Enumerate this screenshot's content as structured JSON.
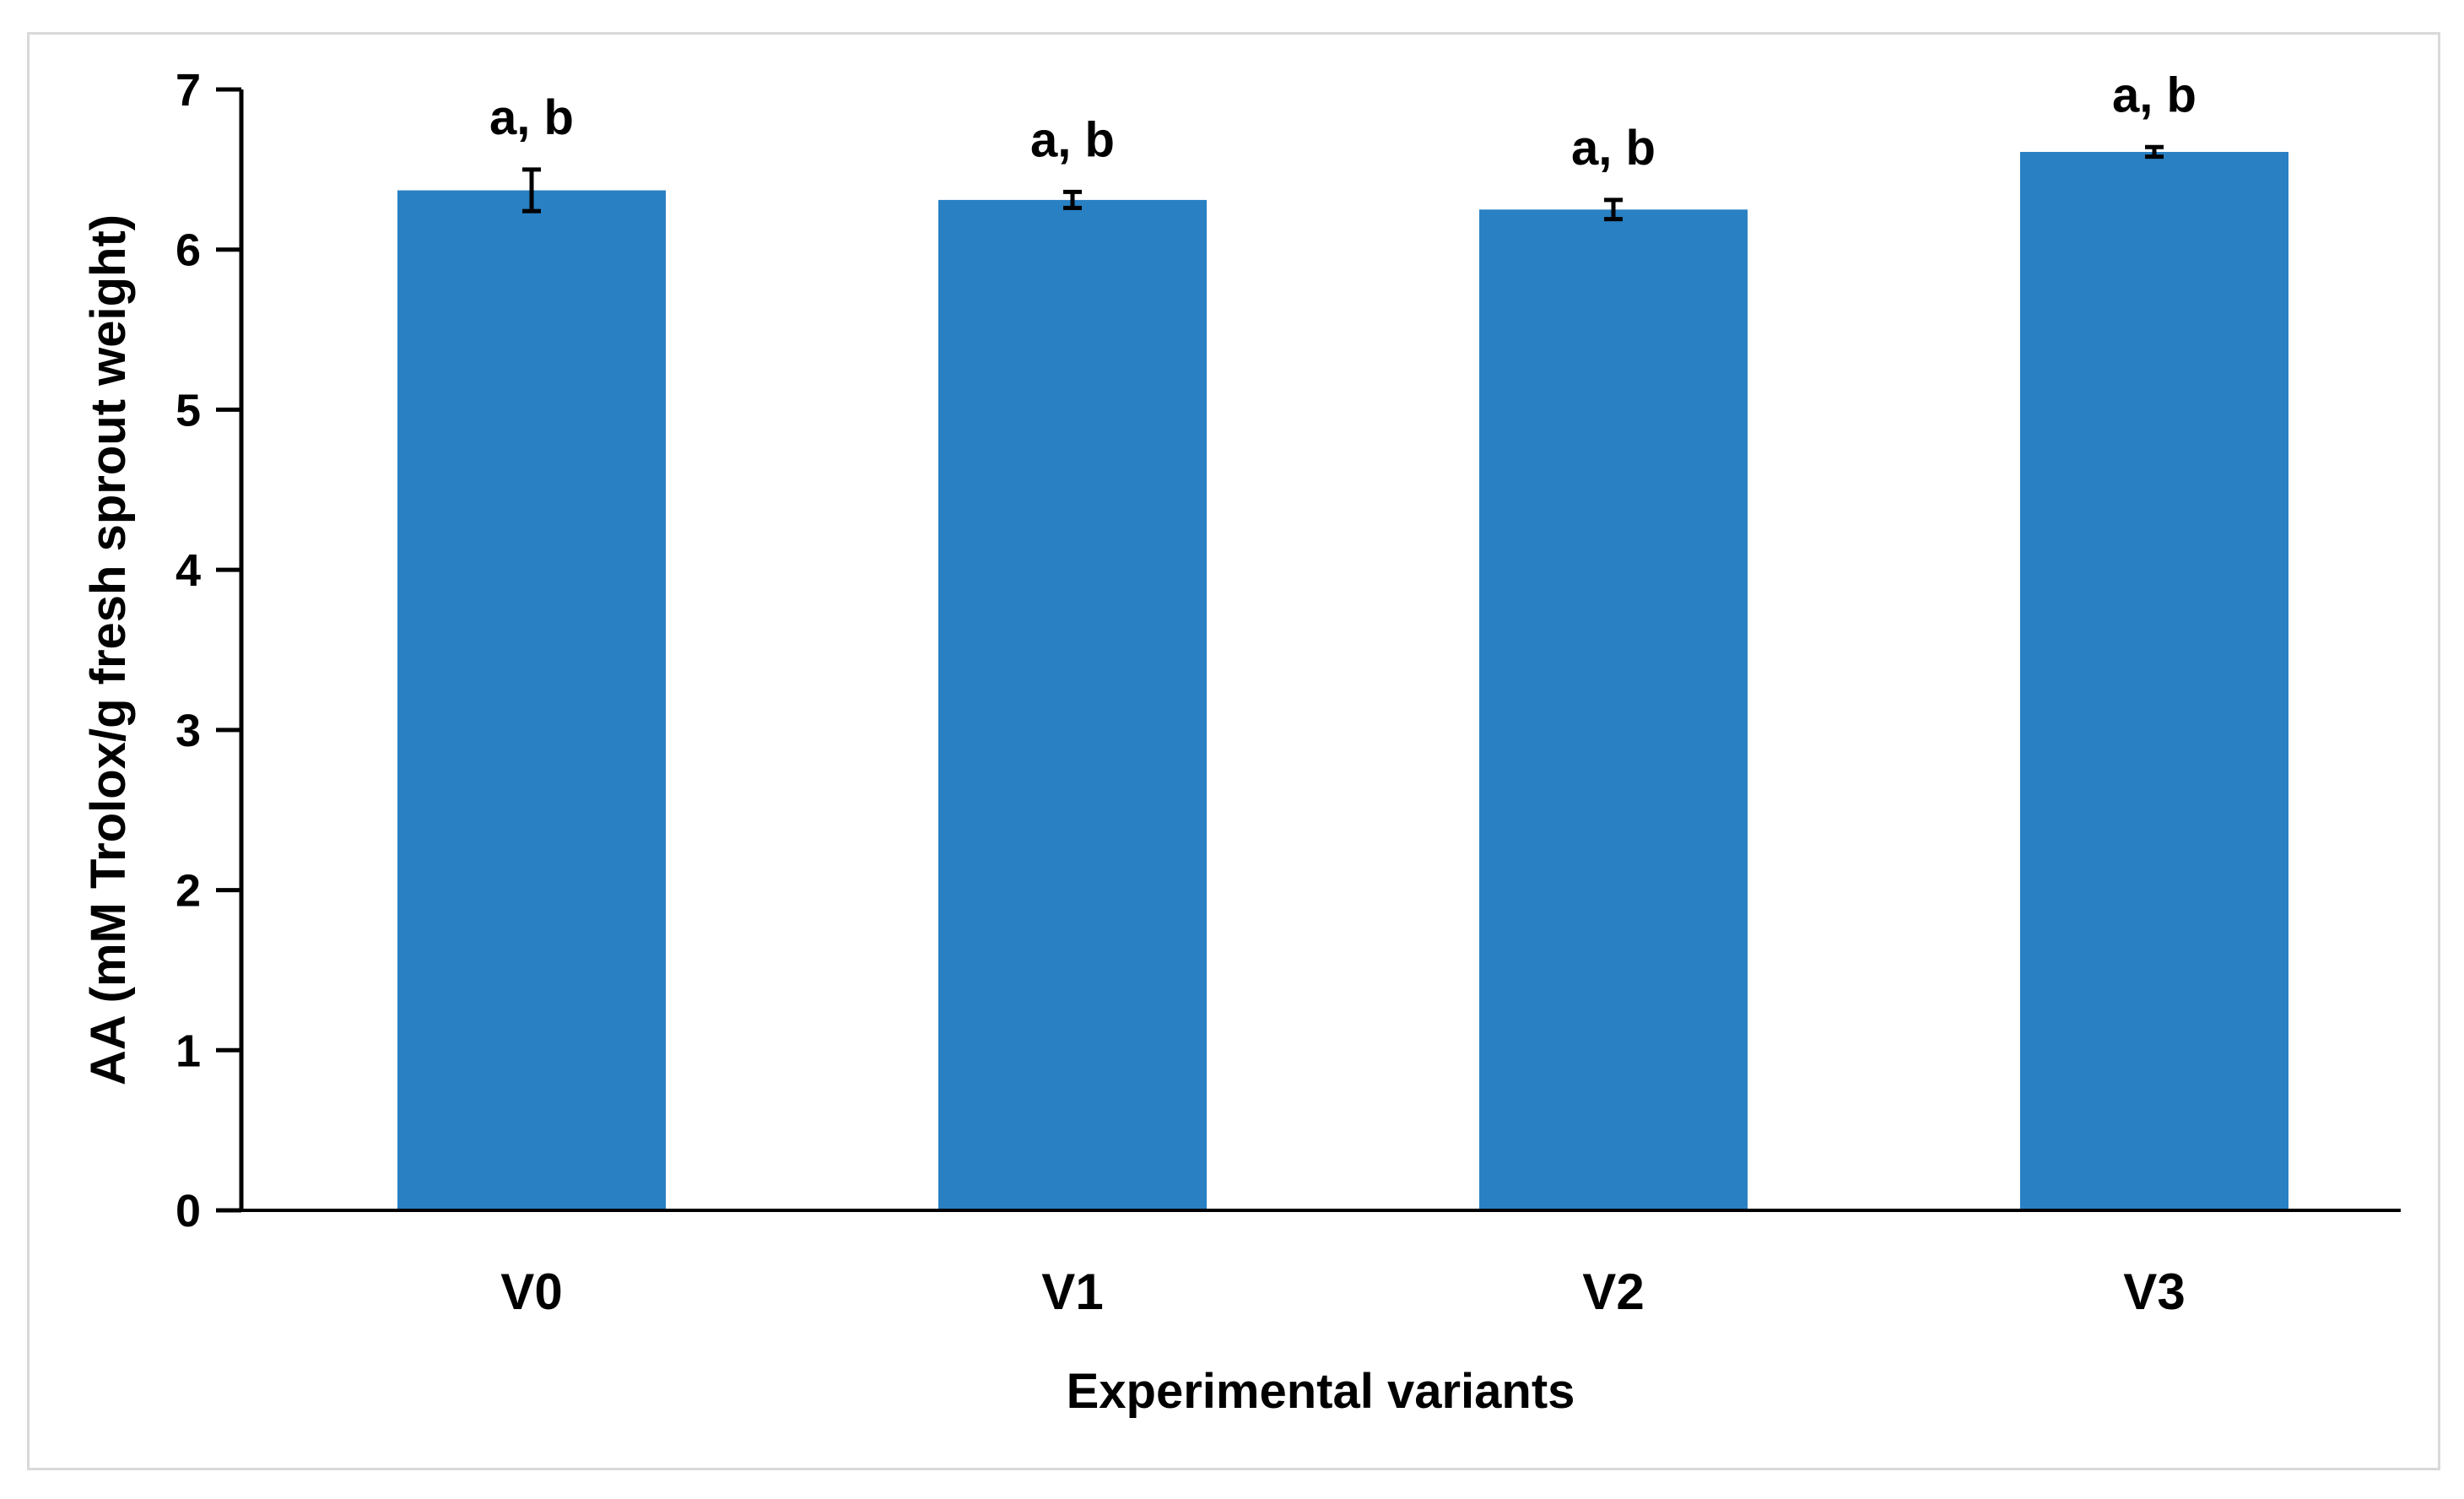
{
  "chart_data": {
    "type": "bar",
    "title": "",
    "xlabel": "Experimental variants",
    "ylabel": "AA (mM Trolox/g fresh sprout weight)",
    "categories": [
      "V0",
      "V1",
      "V2",
      "V3"
    ],
    "values": [
      6.37,
      6.31,
      6.25,
      6.61
    ],
    "errors": [
      0.13,
      0.05,
      0.06,
      0.03
    ],
    "data_labels": [
      "a, b",
      "a, b",
      "a, b",
      "a, b"
    ],
    "ylim": [
      0,
      7
    ],
    "yticks": [
      0,
      1,
      2,
      3,
      4,
      5,
      6,
      7
    ],
    "grid": false,
    "legend": "none",
    "bar_color": "#2980c3"
  }
}
